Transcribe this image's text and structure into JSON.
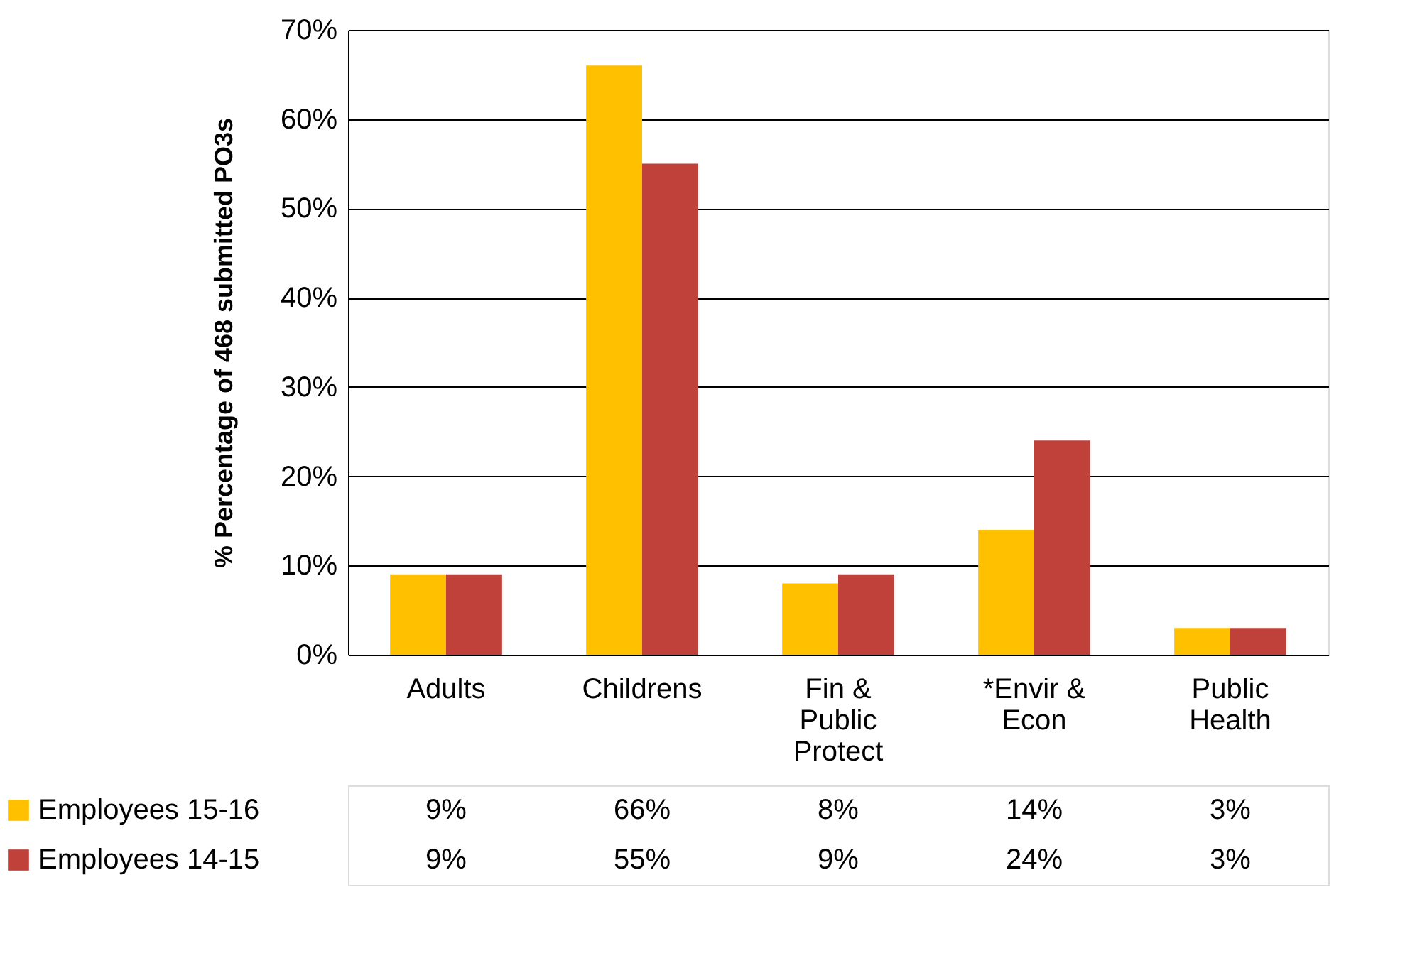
{
  "chart_data": {
    "type": "bar",
    "ylabel": "% Percentage of 468 submitted  PO3s",
    "categories": [
      "Adults",
      "Childrens",
      "Fin & Public Protect",
      "*Envir & Econ",
      "Public Health"
    ],
    "series": [
      {
        "name": "Employees 15-16",
        "color": "#ffc000",
        "values": [
          9,
          66,
          8,
          14,
          3
        ],
        "value_labels": [
          "9%",
          "66%",
          "8%",
          "14%",
          "3%"
        ]
      },
      {
        "name": "Employees 14-15",
        "color": "#c0403a",
        "values": [
          9,
          55,
          9,
          24,
          3
        ],
        "value_labels": [
          "9%",
          "55%",
          "9%",
          "24%",
          "3%"
        ]
      }
    ],
    "ylim": [
      0,
      70
    ],
    "yticks": [
      {
        "value": 0,
        "label": "0%"
      },
      {
        "value": 10,
        "label": "10%"
      },
      {
        "value": 20,
        "label": "20%"
      },
      {
        "value": 30,
        "label": "30%"
      },
      {
        "value": 40,
        "label": "40%"
      },
      {
        "value": 50,
        "label": "50%"
      },
      {
        "value": 60,
        "label": "60%"
      },
      {
        "value": 70,
        "label": "70%"
      }
    ],
    "grid": "y",
    "legend": "bottom"
  }
}
